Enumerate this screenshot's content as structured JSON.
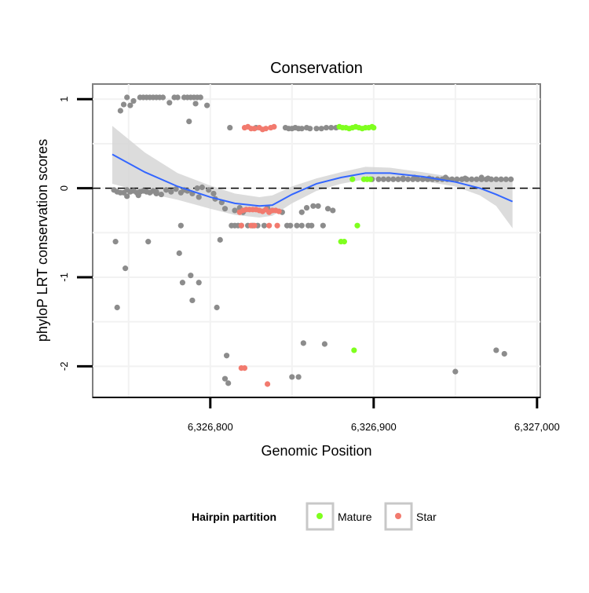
{
  "chart_data": {
    "type": "scatter",
    "title": "Conservation",
    "xlabel": "Genomic Position",
    "ylabel": "phyloP LRT conservation scores",
    "xlim": [
      6326728,
      6327002
    ],
    "ylim": [
      -2.35,
      1.17
    ],
    "x_ticks": [
      6326800,
      6326900,
      6327000
    ],
    "x_tick_labels": [
      "6,326,800",
      "6,326,900",
      "6,327,000"
    ],
    "y_ticks": [
      -2,
      -1,
      0,
      1
    ],
    "y_tick_labels": [
      "-2",
      "-1",
      "0",
      "1"
    ],
    "reference_line": {
      "y": 0,
      "style": "dashed"
    },
    "legend": {
      "title": "Hairpin partition",
      "position": "bottom",
      "entries": [
        {
          "label": "Mature",
          "color": "#7FFF1E"
        },
        {
          "label": "Star",
          "color": "#F27A6E"
        }
      ]
    },
    "colors": {
      "other": "#8C8C8C",
      "Mature": "#7FFF1E",
      "Star": "#F27A6E",
      "smooth": "#3366FF",
      "ribbon": "#D3D3D3"
    },
    "smooth": {
      "x": [
        6326740,
        6326760,
        6326780,
        6326800,
        6326815,
        6326830,
        6326838,
        6326850,
        6326865,
        6326880,
        6326895,
        6326910,
        6326930,
        6326950,
        6326965,
        6326975,
        6326985
      ],
      "y": [
        0.38,
        0.18,
        0.02,
        -0.1,
        -0.17,
        -0.2,
        -0.19,
        -0.07,
        0.05,
        0.12,
        0.17,
        0.17,
        0.13,
        0.07,
        0.0,
        -0.07,
        -0.15
      ],
      "lower": [
        0.05,
        -0.05,
        -0.13,
        -0.23,
        -0.3,
        -0.33,
        -0.31,
        -0.17,
        -0.03,
        0.05,
        0.1,
        0.11,
        0.08,
        0.02,
        -0.08,
        -0.2,
        -0.45
      ],
      "upper": [
        0.7,
        0.4,
        0.17,
        0.03,
        -0.06,
        -0.1,
        -0.08,
        0.02,
        0.11,
        0.18,
        0.24,
        0.23,
        0.18,
        0.12,
        0.09,
        0.08,
        0.12
      ]
    },
    "series": [
      {
        "name": "other",
        "points": [
          [
            6326741,
            -0.02
          ],
          [
            6326743,
            -0.04
          ],
          [
            6326745,
            -0.05
          ],
          [
            6326747,
            -0.05
          ],
          [
            6326749,
            -0.02
          ],
          [
            6326751,
            -0.04
          ],
          [
            6326753,
            -0.03
          ],
          [
            6326755,
            -0.05
          ],
          [
            6326757,
            -0.04
          ],
          [
            6326759,
            -0.03
          ],
          [
            6326761,
            -0.04
          ],
          [
            6326763,
            -0.05
          ],
          [
            6326765,
            -0.03
          ],
          [
            6326767,
            -0.04
          ],
          [
            6326770,
            -0.07
          ],
          [
            6326773,
            -0.02
          ],
          [
            6326776,
            -0.04
          ],
          [
            6326779,
            -0.01
          ],
          [
            6326782,
            -0.05
          ],
          [
            6326784,
            -0.02
          ],
          [
            6326786,
            -0.03
          ],
          [
            6326789,
            -0.06
          ],
          [
            6326792,
            0.0
          ],
          [
            6326795,
            0.01
          ],
          [
            6326799,
            -0.02
          ],
          [
            6326802,
            -0.06
          ],
          [
            6326749,
            -0.09
          ],
          [
            6326756,
            -0.08
          ],
          [
            6326767,
            -0.06
          ],
          [
            6326793,
            -0.1
          ],
          [
            6326803,
            -0.12
          ],
          [
            6326745,
            0.87
          ],
          [
            6326747,
            0.94
          ],
          [
            6326749,
            1.02
          ],
          [
            6326751,
            0.93
          ],
          [
            6326753,
            0.98
          ],
          [
            6326757,
            1.02
          ],
          [
            6326759,
            1.02
          ],
          [
            6326761,
            1.02
          ],
          [
            6326763,
            1.02
          ],
          [
            6326765,
            1.02
          ],
          [
            6326767,
            1.02
          ],
          [
            6326769,
            1.02
          ],
          [
            6326771,
            1.02
          ],
          [
            6326778,
            1.02
          ],
          [
            6326780,
            1.02
          ],
          [
            6326784,
            1.02
          ],
          [
            6326786,
            1.02
          ],
          [
            6326788,
            1.02
          ],
          [
            6326790,
            1.02
          ],
          [
            6326792,
            1.02
          ],
          [
            6326794,
            1.02
          ],
          [
            6326775,
            0.96
          ],
          [
            6326791,
            0.95
          ],
          [
            6326787,
            0.75
          ],
          [
            6326798,
            0.93
          ],
          [
            6326812,
            0.68
          ],
          [
            6326828,
            0.68
          ],
          [
            6326846,
            0.68
          ],
          [
            6326848,
            0.67
          ],
          [
            6326850,
            0.67
          ],
          [
            6326852,
            0.68
          ],
          [
            6326854,
            0.67
          ],
          [
            6326856,
            0.67
          ],
          [
            6326859,
            0.68
          ],
          [
            6326861,
            0.67
          ],
          [
            6326865,
            0.67
          ],
          [
            6326868,
            0.67
          ],
          [
            6326871,
            0.68
          ],
          [
            6326874,
            0.68
          ],
          [
            6326877,
            0.68
          ],
          [
            6326807,
            -0.16
          ],
          [
            6326809,
            -0.23
          ],
          [
            6326815,
            -0.25
          ],
          [
            6326818,
            -0.22
          ],
          [
            6326820,
            -0.27
          ],
          [
            6326835,
            -0.22
          ],
          [
            6326838,
            -0.25
          ],
          [
            6326844,
            -0.27
          ],
          [
            6326856,
            -0.27
          ],
          [
            6326859,
            -0.22
          ],
          [
            6326863,
            -0.2
          ],
          [
            6326866,
            -0.2
          ],
          [
            6326872,
            -0.23
          ],
          [
            6326875,
            -0.25
          ],
          [
            6326813,
            -0.42
          ],
          [
            6326815,
            -0.42
          ],
          [
            6326817,
            -0.42
          ],
          [
            6326819,
            -0.42
          ],
          [
            6326823,
            -0.42
          ],
          [
            6326826,
            -0.42
          ],
          [
            6326829,
            -0.42
          ],
          [
            6326833,
            -0.42
          ],
          [
            6326847,
            -0.42
          ],
          [
            6326849,
            -0.42
          ],
          [
            6326853,
            -0.42
          ],
          [
            6326856,
            -0.42
          ],
          [
            6326860,
            -0.42
          ],
          [
            6326862,
            -0.42
          ],
          [
            6326869,
            -0.42
          ],
          [
            6326806,
            -0.58
          ],
          [
            6326782,
            -0.42
          ],
          [
            6326762,
            -0.6
          ],
          [
            6326742,
            -0.6
          ],
          [
            6326781,
            -0.73
          ],
          [
            6326748,
            -0.9
          ],
          [
            6326788,
            -0.98
          ],
          [
            6326783,
            -1.06
          ],
          [
            6326793,
            -1.06
          ],
          [
            6326789,
            -1.26
          ],
          [
            6326804,
            -1.34
          ],
          [
            6326743,
            -1.34
          ],
          [
            6326810,
            -1.88
          ],
          [
            6326809,
            -2.14
          ],
          [
            6326811,
            -2.19
          ],
          [
            6326850,
            -2.12
          ],
          [
            6326854,
            -2.12
          ],
          [
            6326857,
            -1.74
          ],
          [
            6326870,
            -1.75
          ],
          [
            6326950,
            -2.06
          ],
          [
            6326975,
            -1.82
          ],
          [
            6326980,
            -1.86
          ],
          [
            6326899,
            0.1
          ],
          [
            6326903,
            0.1
          ],
          [
            6326906,
            0.1
          ],
          [
            6326909,
            0.1
          ],
          [
            6326912,
            0.1
          ],
          [
            6326915,
            0.1
          ],
          [
            6326918,
            0.1
          ],
          [
            6326921,
            0.1
          ],
          [
            6326924,
            0.1
          ],
          [
            6326927,
            0.1
          ],
          [
            6326930,
            0.1
          ],
          [
            6326933,
            0.1
          ],
          [
            6326936,
            0.1
          ],
          [
            6326939,
            0.1
          ],
          [
            6326942,
            0.1
          ],
          [
            6326945,
            0.1
          ],
          [
            6326948,
            0.1
          ],
          [
            6326951,
            0.1
          ],
          [
            6326954,
            0.1
          ],
          [
            6326957,
            0.1
          ],
          [
            6326960,
            0.1
          ],
          [
            6326963,
            0.1
          ],
          [
            6326966,
            0.1
          ],
          [
            6326969,
            0.1
          ],
          [
            6326972,
            0.1
          ],
          [
            6326975,
            0.1
          ],
          [
            6326978,
            0.1
          ],
          [
            6326981,
            0.1
          ],
          [
            6326984,
            0.1
          ],
          [
            6326918,
            0.11
          ],
          [
            6326925,
            0.12
          ],
          [
            6326934,
            0.11
          ],
          [
            6326944,
            0.12
          ],
          [
            6326956,
            0.11
          ],
          [
            6326966,
            0.12
          ],
          [
            6326970,
            0.11
          ]
        ]
      },
      {
        "name": "Mature",
        "points": [
          [
            6326879,
            0.69
          ],
          [
            6326881,
            0.68
          ],
          [
            6326883,
            0.68
          ],
          [
            6326885,
            0.67
          ],
          [
            6326887,
            0.68
          ],
          [
            6326889,
            0.69
          ],
          [
            6326891,
            0.68
          ],
          [
            6326893,
            0.67
          ],
          [
            6326895,
            0.68
          ],
          [
            6326897,
            0.68
          ],
          [
            6326899,
            0.69
          ],
          [
            6326900,
            0.68
          ],
          [
            6326887,
            0.1
          ],
          [
            6326894,
            0.1
          ],
          [
            6326896,
            0.1
          ],
          [
            6326898,
            0.1
          ],
          [
            6326880,
            -0.6
          ],
          [
            6326882,
            -0.6
          ],
          [
            6326890,
            -0.42
          ],
          [
            6326888,
            -1.82
          ]
        ]
      },
      {
        "name": "Star",
        "points": [
          [
            6326821,
            0.68
          ],
          [
            6326823,
            0.69
          ],
          [
            6326825,
            0.67
          ],
          [
            6326827,
            0.67
          ],
          [
            6326830,
            0.68
          ],
          [
            6326832,
            0.66
          ],
          [
            6326834,
            0.67
          ],
          [
            6326837,
            0.68
          ],
          [
            6326839,
            0.69
          ],
          [
            6326818,
            -0.27
          ],
          [
            6326820,
            -0.25
          ],
          [
            6326822,
            -0.24
          ],
          [
            6326824,
            -0.24
          ],
          [
            6326826,
            -0.24
          ],
          [
            6326828,
            -0.24
          ],
          [
            6326830,
            -0.25
          ],
          [
            6326832,
            -0.26
          ],
          [
            6326834,
            -0.24
          ],
          [
            6326836,
            -0.27
          ],
          [
            6326838,
            -0.25
          ],
          [
            6326840,
            -0.25
          ],
          [
            6326842,
            -0.26
          ],
          [
            6326819,
            -0.42
          ],
          [
            6326825,
            -0.42
          ],
          [
            6326827,
            -0.42
          ],
          [
            6326836,
            -0.42
          ],
          [
            6326841,
            -0.42
          ],
          [
            6326819,
            -2.02
          ],
          [
            6326821,
            -2.02
          ],
          [
            6326835,
            -2.2
          ]
        ]
      }
    ]
  }
}
